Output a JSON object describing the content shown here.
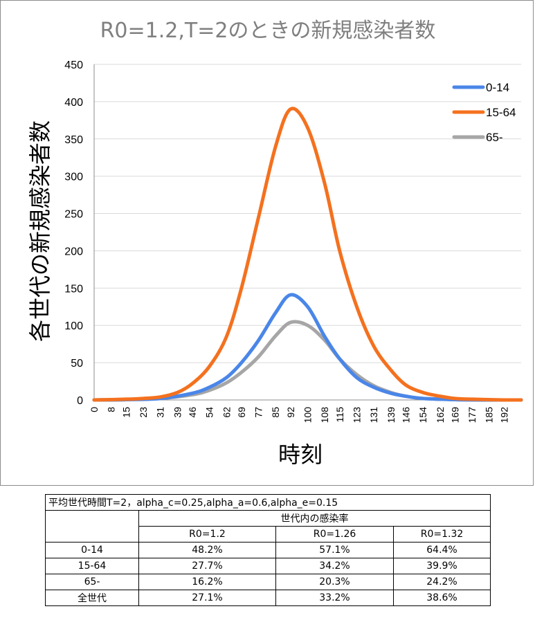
{
  "chart_data": {
    "type": "line",
    "title": "R0=1.2,T=2のときの新規感染者数",
    "xlabel": "時刻",
    "ylabel": "各世代の新規感染者数",
    "ylim": [
      0,
      450
    ],
    "yticks": [
      0,
      50,
      100,
      150,
      200,
      250,
      300,
      350,
      400,
      450
    ],
    "xlim": [
      0,
      200
    ],
    "xticks": [
      "0",
      "8",
      "15",
      "23",
      "31",
      "39",
      "46",
      "54",
      "62",
      "69",
      "77",
      "85",
      "92",
      "100",
      "108",
      "115",
      "123",
      "131",
      "139",
      "146",
      "154",
      "162",
      "169",
      "177",
      "185",
      "192"
    ],
    "grid": "horizontal",
    "legend_position": "top-right",
    "series": [
      {
        "name": "0-14",
        "color": "#4a86e8",
        "peak_x": 92,
        "peak_y": 141,
        "points": [
          [
            0,
            0
          ],
          [
            15,
            0.5
          ],
          [
            31,
            2
          ],
          [
            46,
            9
          ],
          [
            54,
            17
          ],
          [
            62,
            30
          ],
          [
            69,
            50
          ],
          [
            77,
            80
          ],
          [
            85,
            117
          ],
          [
            92,
            141
          ],
          [
            100,
            125
          ],
          [
            108,
            85
          ],
          [
            115,
            55
          ],
          [
            123,
            30
          ],
          [
            131,
            17
          ],
          [
            139,
            9
          ],
          [
            146,
            5
          ],
          [
            154,
            2
          ],
          [
            169,
            0.5
          ],
          [
            185,
            0
          ],
          [
            200,
            0
          ]
        ]
      },
      {
        "name": "15-64",
        "color": "#f4711f",
        "peak_x": 92,
        "peak_y": 390,
        "points": [
          [
            0,
            0
          ],
          [
            15,
            1
          ],
          [
            23,
            2
          ],
          [
            31,
            4
          ],
          [
            39,
            10
          ],
          [
            46,
            22
          ],
          [
            54,
            45
          ],
          [
            62,
            85
          ],
          [
            69,
            150
          ],
          [
            77,
            245
          ],
          [
            85,
            340
          ],
          [
            92,
            390
          ],
          [
            100,
            365
          ],
          [
            108,
            290
          ],
          [
            115,
            200
          ],
          [
            123,
            125
          ],
          [
            131,
            72
          ],
          [
            139,
            40
          ],
          [
            146,
            20
          ],
          [
            154,
            10
          ],
          [
            162,
            5
          ],
          [
            169,
            2
          ],
          [
            177,
            1
          ],
          [
            192,
            0
          ],
          [
            200,
            0
          ]
        ]
      },
      {
        "name": "65-",
        "color": "#a6a6a6",
        "peak_x": 92,
        "peak_y": 104,
        "points": [
          [
            0,
            0
          ],
          [
            15,
            0.5
          ],
          [
            31,
            2
          ],
          [
            46,
            7
          ],
          [
            54,
            13
          ],
          [
            62,
            23
          ],
          [
            69,
            37
          ],
          [
            77,
            58
          ],
          [
            85,
            86
          ],
          [
            92,
            104
          ],
          [
            100,
            100
          ],
          [
            108,
            80
          ],
          [
            115,
            55
          ],
          [
            123,
            34
          ],
          [
            131,
            19
          ],
          [
            139,
            10
          ],
          [
            146,
            5
          ],
          [
            154,
            2
          ],
          [
            169,
            0.5
          ],
          [
            185,
            0
          ],
          [
            200,
            0
          ]
        ]
      }
    ]
  },
  "table": {
    "caption": "平均世代時間T=2，alpha_c=0.25,alpha_a=0.6,alpha_e=0.15",
    "group_header": "世代内の感染率",
    "columns": [
      "R0=1.2",
      "R0=1.26",
      "R0=1.32"
    ],
    "rows": [
      {
        "label": "0-14",
        "values": [
          "48.2%",
          "57.1%",
          "64.4%"
        ]
      },
      {
        "label": "15-64",
        "values": [
          "27.7%",
          "34.2%",
          "39.9%"
        ]
      },
      {
        "label": "65-",
        "values": [
          "16.2%",
          "20.3%",
          "24.2%"
        ]
      },
      {
        "label": "全世代",
        "values": [
          "27.1%",
          "33.2%",
          "38.6%"
        ]
      }
    ]
  }
}
